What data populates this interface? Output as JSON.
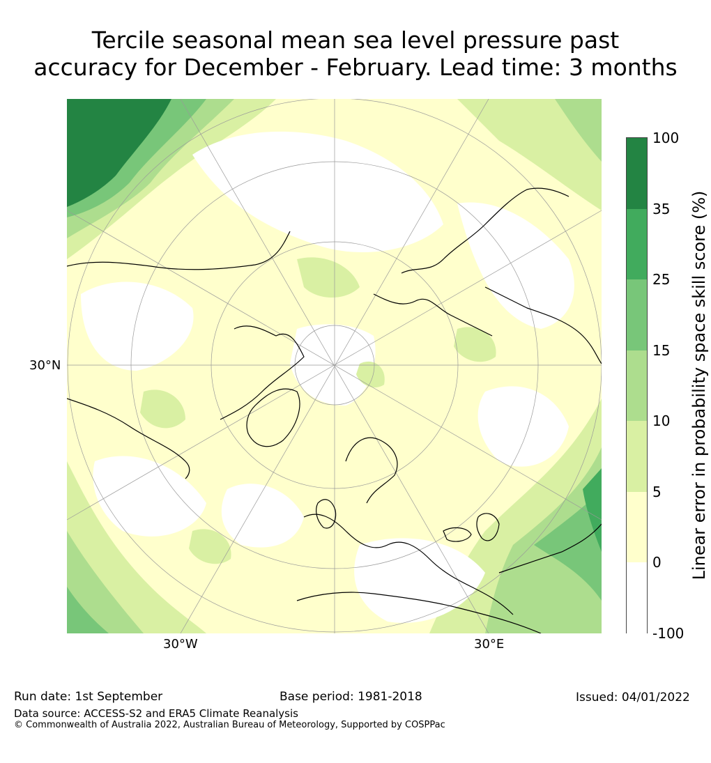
{
  "title_line1": "Tercile seasonal mean sea level pressure past",
  "title_line2": "accuracy for December - February. Lead time: 3 months",
  "map": {
    "lat_label": "30°N",
    "lon_label_left": "30°W",
    "lon_label_right": "30°E"
  },
  "colorbar": {
    "label": "Linear error in probability space skill score (%)",
    "ticks": [
      "100",
      "35",
      "25",
      "15",
      "10",
      "5",
      "0",
      "-100"
    ],
    "bins": [
      {
        "range": "35 to 100",
        "color": "#238443"
      },
      {
        "range": "25 to 35",
        "color": "#41ab5d"
      },
      {
        "range": "15 to 25",
        "color": "#78c679"
      },
      {
        "range": "10 to 15",
        "color": "#addd8e"
      },
      {
        "range": "5 to 10",
        "color": "#d9f0a3"
      },
      {
        "range": "0 to 5",
        "color": "#ffffcc"
      },
      {
        "range": "-100 to 0",
        "color": "#ffffff"
      }
    ]
  },
  "footer": {
    "run_date": "Run date: 1st September",
    "base_period": "Base period: 1981-2018",
    "issued": "Issued: 04/01/2022",
    "data_source": "Data source: ACCESS-S2 and ERA5 Climate Reanalysis",
    "copyright": "© Commonwealth of Australia 2022, Australian Bureau of Meteorology, Supported by COSPPac"
  }
}
